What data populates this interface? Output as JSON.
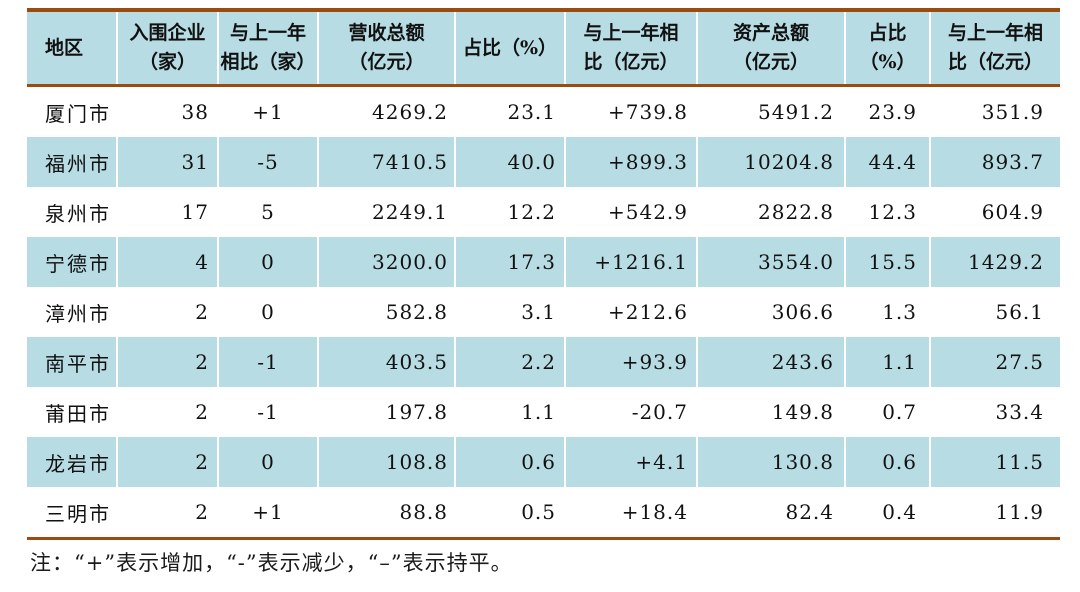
{
  "colors": {
    "header_and_stripe_bg": "#b7dce3",
    "rule_brown": "#9a4c10",
    "cell_separator": "#ffffff",
    "text": "#111111"
  },
  "table": {
    "headers": [
      {
        "l1": "地区",
        "l2": ""
      },
      {
        "l1": "入围企业",
        "l2": "（家）"
      },
      {
        "l1": "与上一年",
        "l2": "相比（家）"
      },
      {
        "l1": "营收总额",
        "l2": "（亿元）"
      },
      {
        "l1": "占比（%）",
        "l2": ""
      },
      {
        "l1": "与上一年相",
        "l2": "比（亿元）"
      },
      {
        "l1": "资产总额",
        "l2": "（亿元）"
      },
      {
        "l1": "占比",
        "l2": "（%）"
      },
      {
        "l1": "与上一年相",
        "l2": "比（亿元）"
      }
    ],
    "rows": [
      [
        "厦门市",
        "38",
        "+1",
        "4269.2",
        "23.1",
        "+739.8",
        "5491.2",
        "23.9",
        "351.9"
      ],
      [
        "福州市",
        "31",
        "-5",
        "7410.5",
        "40.0",
        "+899.3",
        "10204.8",
        "44.4",
        "893.7"
      ],
      [
        "泉州市",
        "17",
        "5",
        "2249.1",
        "12.2",
        "+542.9",
        "2822.8",
        "12.3",
        "604.9"
      ],
      [
        "宁德市",
        "4",
        "0",
        "3200.0",
        "17.3",
        "+1216.1",
        "3554.0",
        "15.5",
        "1429.2"
      ],
      [
        "漳州市",
        "2",
        "0",
        "582.8",
        "3.1",
        "+212.6",
        "306.6",
        "1.3",
        "56.1"
      ],
      [
        "南平市",
        "2",
        "-1",
        "403.5",
        "2.2",
        "+93.9",
        "243.6",
        "1.1",
        "27.5"
      ],
      [
        "莆田市",
        "2",
        "-1",
        "197.8",
        "1.1",
        "-20.7",
        "149.8",
        "0.7",
        "33.4"
      ],
      [
        "龙岩市",
        "2",
        "0",
        "108.8",
        "0.6",
        "+4.1",
        "130.8",
        "0.6",
        "11.5"
      ],
      [
        "三明市",
        "2",
        "+1",
        "88.8",
        "0.5",
        "+18.4",
        "82.4",
        "0.4",
        "11.9"
      ]
    ]
  },
  "note": "注：“+”表示增加，“-”表示减少，“–”表示持平。"
}
